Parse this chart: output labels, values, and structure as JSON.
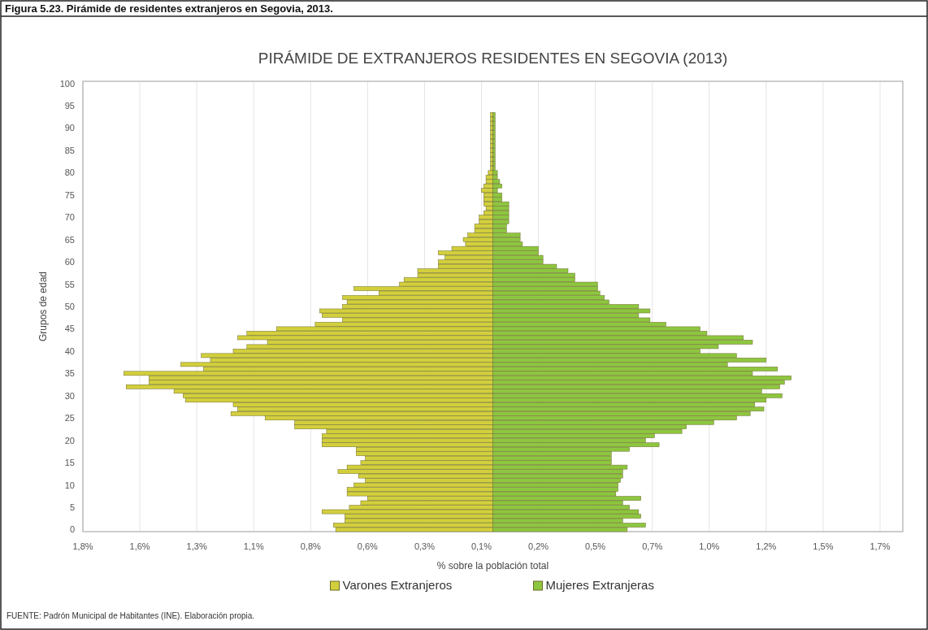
{
  "chart_data": {
    "type": "bar",
    "orientation": "horizontal",
    "stacked": true,
    "title": "PIRÁMIDE DE EXTRANJEROS RESIDENTES EN SEGOVIA (2013)",
    "xlabel": "% sobre la población total",
    "ylabel": "Grupos de edad",
    "annotations": [
      "Figura 5.23. Pirámide de residentes extranjeros en Segovia, 2013.",
      "FUENTE: Padrón Municipal  de Habitantes (INE). Elaboración propia."
    ],
    "categories": [
      "100",
      null,
      null,
      null,
      null,
      "95",
      null,
      null,
      null,
      null,
      "90",
      null,
      null,
      null,
      null,
      "85",
      null,
      null,
      null,
      null,
      "80",
      null,
      null,
      null,
      null,
      "75",
      null,
      null,
      null,
      null,
      "70",
      null,
      null,
      null,
      null,
      "65",
      null,
      null,
      null,
      null,
      "60",
      null,
      null,
      null,
      null,
      "55",
      null,
      null,
      null,
      null,
      "50",
      null,
      null,
      null,
      null,
      "45",
      null,
      null,
      null,
      null,
      "40",
      null,
      null,
      null,
      null,
      "35",
      null,
      null,
      null,
      null,
      "30",
      null,
      null,
      null,
      null,
      "25",
      null,
      null,
      null,
      null,
      "20",
      null,
      null,
      null,
      null,
      "15",
      null,
      null,
      null,
      null,
      "10",
      null,
      null,
      null,
      null,
      "5",
      null,
      null,
      null,
      null,
      "0"
    ],
    "series": [
      {
        "name": "Varones Extranjeros",
        "color": "#d2cf3c",
        "values": [
          null,
          null,
          null,
          null,
          null,
          null,
          null,
          -0.01,
          -0.01,
          -0.01,
          -0.01,
          -0.01,
          -0.01,
          -0.01,
          -0.01,
          -0.01,
          -0.01,
          -0.01,
          -0.01,
          -0.01,
          -0.02,
          -0.03,
          -0.03,
          -0.04,
          -0.05,
          -0.04,
          -0.04,
          -0.04,
          -0.03,
          -0.04,
          -0.06,
          -0.06,
          -0.08,
          -0.08,
          -0.11,
          -0.13,
          -0.12,
          -0.18,
          -0.24,
          -0.21,
          -0.24,
          -0.24,
          -0.33,
          -0.33,
          -0.39,
          -0.41,
          -0.61,
          -0.5,
          -0.66,
          -0.64,
          -0.66,
          -0.76,
          -0.75,
          -0.66,
          -0.78,
          -0.95,
          -1.08,
          -1.12,
          -0.99,
          -1.08,
          -1.14,
          -1.28,
          -1.24,
          -1.37,
          -1.27,
          -1.62,
          -1.51,
          -1.51,
          -1.61,
          -1.4,
          -1.36,
          -1.35,
          -1.14,
          -1.12,
          -1.15,
          -1.0,
          -0.87,
          -0.87,
          -0.73,
          -0.75,
          -0.75,
          -0.75,
          -0.6,
          -0.6,
          -0.56,
          -0.58,
          -0.64,
          -0.68,
          -0.59,
          -0.56,
          -0.61,
          -0.64,
          -0.64,
          -0.55,
          -0.58,
          -0.63,
          -0.75,
          -0.65,
          -0.65,
          -0.7,
          -0.69
        ]
      },
      {
        "name": "Mujeres Extranjeras",
        "color": "#8dc63f",
        "values": [
          null,
          null,
          null,
          null,
          null,
          null,
          null,
          0.01,
          0.01,
          0.01,
          0.01,
          0.01,
          0.01,
          0.01,
          0.01,
          0.01,
          0.01,
          0.01,
          0.01,
          0.01,
          0.02,
          0.02,
          0.03,
          0.04,
          0.02,
          0.04,
          0.04,
          0.07,
          0.07,
          0.07,
          0.07,
          0.07,
          0.06,
          0.06,
          0.12,
          0.12,
          0.13,
          0.2,
          0.2,
          0.22,
          0.22,
          0.28,
          0.33,
          0.36,
          0.36,
          0.46,
          0.46,
          0.47,
          0.49,
          0.51,
          0.64,
          0.69,
          0.64,
          0.69,
          0.76,
          0.91,
          0.94,
          1.1,
          1.14,
          0.99,
          0.91,
          1.07,
          1.2,
          1.03,
          1.25,
          1.14,
          1.31,
          1.28,
          1.26,
          1.18,
          1.27,
          1.2,
          1.15,
          1.19,
          1.13,
          1.07,
          0.97,
          0.85,
          0.83,
          0.71,
          0.67,
          0.73,
          0.6,
          0.52,
          0.52,
          0.52,
          0.59,
          0.57,
          0.57,
          0.56,
          0.55,
          0.55,
          0.54,
          0.65,
          0.57,
          0.6,
          0.64,
          0.65,
          0.57,
          0.67,
          0.59
        ]
      }
    ],
    "xlim": [
      -1.8,
      1.8
    ],
    "xticks": [
      {
        "value": -1.8,
        "label": "1,8%"
      },
      {
        "value": -1.55,
        "label": "1,6%"
      },
      {
        "value": -1.3,
        "label": "1,3%"
      },
      {
        "value": -1.05,
        "label": "1,1%"
      },
      {
        "value": -0.8,
        "label": "0,8%"
      },
      {
        "value": -0.55,
        "label": "0,6%"
      },
      {
        "value": -0.3,
        "label": "0,3%"
      },
      {
        "value": -0.05,
        "label": "0,1%"
      },
      {
        "value": 0.2,
        "label": "0,2%"
      },
      {
        "value": 0.45,
        "label": "0,5%"
      },
      {
        "value": 0.7,
        "label": "0,7%"
      },
      {
        "value": 0.95,
        "label": "1,0%"
      },
      {
        "value": 1.2,
        "label": "1,2%"
      },
      {
        "value": 1.45,
        "label": "1,5%"
      },
      {
        "value": 1.7,
        "label": "1,7%"
      }
    ],
    "grid": "x",
    "legend": "bottom"
  }
}
